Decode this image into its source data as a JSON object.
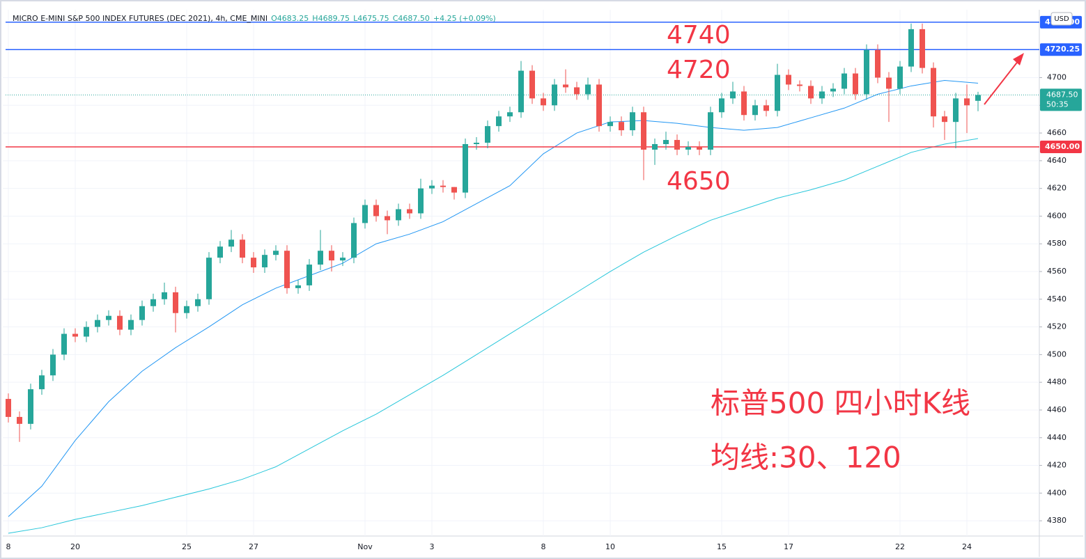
{
  "chart_data": {
    "type": "candlestick",
    "legend": {
      "title": "MICRO E-MINI S&P 500 INDEX FUTURES (DEC 2021), 4h, CME_MINI",
      "items": [
        "O4683.25",
        "H4689.75",
        "L4675.75",
        "C4687.50",
        "+4.25 (+0.09%)"
      ]
    },
    "currency": "USD",
    "categories": [
      "8",
      null,
      null,
      null,
      null,
      null,
      "20",
      null,
      null,
      null,
      null,
      null,
      null,
      null,
      null,
      null,
      "25",
      null,
      null,
      null,
      null,
      null,
      "27",
      null,
      null,
      null,
      null,
      null,
      null,
      null,
      null,
      null,
      "Nov",
      null,
      null,
      null,
      null,
      null,
      "3",
      null,
      null,
      null,
      null,
      null,
      null,
      null,
      null,
      null,
      "8",
      null,
      null,
      null,
      null,
      null,
      "10",
      null,
      null,
      null,
      null,
      null,
      null,
      null,
      null,
      null,
      "15",
      null,
      null,
      null,
      null,
      null,
      "17",
      null,
      null,
      null,
      null,
      null,
      null,
      null,
      null,
      null,
      "22",
      null,
      null,
      null,
      null,
      null,
      "24",
      null
    ],
    "open": [
      4468,
      4455,
      4450,
      4475,
      4485,
      4500,
      4515,
      4513,
      4520,
      4525,
      4528,
      4518,
      4525,
      4535,
      4540,
      4545,
      4530,
      4535,
      4540,
      4570,
      4578,
      4583,
      4570,
      4563,
      4572,
      4575,
      4548,
      4550,
      4565,
      4575,
      4568,
      4570,
      4595,
      4608,
      4600,
      4597,
      4605,
      4602,
      4620,
      4622,
      4621,
      4617,
      4652,
      4653,
      4665,
      4672,
      4675,
      4705,
      4685,
      4680,
      4695,
      4693,
      4688,
      4695,
      4665,
      4668,
      4662,
      4675,
      4648,
      4652,
      4655,
      4648,
      4650,
      4648,
      4675,
      4685,
      4690,
      4673,
      4680,
      4676,
      4702,
      4695,
      4694,
      4685,
      4690,
      4692,
      4703,
      4688,
      4720,
      4700,
      4692,
      4708,
      4735,
      4707,
      4672,
      4668,
      4685,
      4683.25
    ],
    "high": [
      4472,
      4459,
      4479,
      4489,
      4504,
      4519,
      4519,
      4524,
      4529,
      4532,
      4532,
      4529,
      4539,
      4544,
      4552,
      4549,
      4539,
      4544,
      4574,
      4582,
      4590,
      4587,
      4574,
      4576,
      4579,
      4579,
      4554,
      4569,
      4590,
      4579,
      4574,
      4599,
      4612,
      4612,
      4604,
      4609,
      4609,
      4627,
      4626,
      4626,
      4621,
      4656,
      4657,
      4669,
      4676,
      4679,
      4712,
      4709,
      4689,
      4699,
      4706,
      4697,
      4700,
      4699,
      4672,
      4672,
      4679,
      4679,
      4656,
      4661,
      4659,
      4654,
      4654,
      4679,
      4689,
      4697,
      4694,
      4684,
      4684,
      4710,
      4706,
      4698,
      4698,
      4694,
      4696,
      4707,
      4707,
      4724,
      4724,
      4704,
      4712,
      4739,
      4739,
      4711,
      4676,
      4689,
      4695,
      4689.75
    ],
    "low": [
      4451,
      4437,
      4446,
      4471,
      4481,
      4496,
      4509,
      4509,
      4516,
      4521,
      4514,
      4514,
      4521,
      4531,
      4536,
      4516,
      4526,
      4531,
      4536,
      4566,
      4574,
      4566,
      4559,
      4559,
      4568,
      4544,
      4544,
      4546,
      4561,
      4560,
      4564,
      4566,
      4591,
      4596,
      4587,
      4593,
      4598,
      4598,
      4616,
      4617,
      4612,
      4613,
      4648,
      4649,
      4661,
      4668,
      4671,
      4681,
      4676,
      4676,
      4689,
      4684,
      4684,
      4661,
      4661,
      4658,
      4658,
      4626,
      4637,
      4648,
      4644,
      4644,
      4644,
      4644,
      4671,
      4681,
      4669,
      4669,
      4672,
      4672,
      4691,
      4690,
      4681,
      4681,
      4686,
      4688,
      4684,
      4684,
      4696,
      4668,
      4688,
      4704,
      4703,
      4664,
      4655,
      4649,
      4660,
      4675.75
    ],
    "close": [
      4455,
      4450,
      4475,
      4485,
      4500,
      4515,
      4513,
      4520,
      4525,
      4528,
      4518,
      4525,
      4535,
      4540,
      4545,
      4530,
      4535,
      4540,
      4570,
      4578,
      4583,
      4570,
      4563,
      4572,
      4575,
      4548,
      4550,
      4565,
      4575,
      4568,
      4570,
      4595,
      4608,
      4600,
      4597,
      4605,
      4602,
      4620,
      4622,
      4621,
      4617,
      4652,
      4653,
      4665,
      4672,
      4675,
      4705,
      4685,
      4680,
      4695,
      4693,
      4688,
      4695,
      4665,
      4668,
      4662,
      4675,
      4648,
      4652,
      4655,
      4648,
      4650,
      4648,
      4675,
      4685,
      4690,
      4673,
      4680,
      4676,
      4702,
      4695,
      4694,
      4685,
      4690,
      4692,
      4703,
      4688,
      4720,
      4700,
      4692,
      4708,
      4735,
      4707,
      4672,
      4668,
      4685,
      4680,
      4687.5
    ],
    "up_color": "#26a69a",
    "down_color": "#ef5350",
    "ma_lines": [
      {
        "color": "#2196f3",
        "x": [
          0,
          3,
          6,
          9,
          12,
          15,
          18,
          21,
          24,
          27,
          30,
          33,
          36,
          39,
          42,
          45,
          48,
          51,
          54,
          57,
          60,
          63,
          66,
          69,
          72,
          75,
          78,
          81,
          84,
          87
        ],
        "values": [
          4383,
          4405,
          4438,
          4466,
          4488,
          4505,
          4520,
          4536,
          4548,
          4557,
          4566,
          4580,
          4587,
          4596,
          4609,
          4622,
          4645,
          4660,
          4668,
          4669,
          4667,
          4664,
          4662,
          4664,
          4671,
          4678,
          4688,
          4694,
          4698,
          4696
        ]
      },
      {
        "color": "#26c6da",
        "x": [
          0,
          3,
          6,
          9,
          12,
          15,
          18,
          21,
          24,
          27,
          30,
          33,
          36,
          39,
          42,
          45,
          48,
          51,
          54,
          57,
          60,
          63,
          66,
          69,
          72,
          75,
          78,
          81,
          84,
          87
        ],
        "values": [
          4371,
          4375,
          4381,
          4386,
          4391,
          4397,
          4403,
          4410,
          4419,
          4432,
          4445,
          4457,
          4471,
          4485,
          4500,
          4515,
          4530,
          4545,
          4560,
          4574,
          4586,
          4597,
          4605,
          4613,
          4619,
          4626,
          4636,
          4646,
          4652,
          4656
        ]
      }
    ],
    "hlines": [
      {
        "value": 4740,
        "label": "4740.00",
        "color": "#2962ff"
      },
      {
        "value": 4720.25,
        "label": "4720.25",
        "color": "#2962ff"
      },
      {
        "value": 4650,
        "label": "4650.00",
        "color": "#f23645"
      }
    ],
    "last_price": {
      "value": 4687.5,
      "label": "4687.50",
      "countdown": "50:35",
      "color": "#26a69a"
    },
    "annotations": [
      "4740",
      "4720",
      "4650",
      "标普500 四小时K线",
      "均线:30、120"
    ],
    "ylim": [
      4369,
      4746
    ],
    "yticks": [
      4380,
      4400,
      4420,
      4440,
      4460,
      4480,
      4500,
      4520,
      4540,
      4560,
      4580,
      4600,
      4620,
      4640,
      4660,
      4680,
      4700
    ],
    "grid": true
  }
}
